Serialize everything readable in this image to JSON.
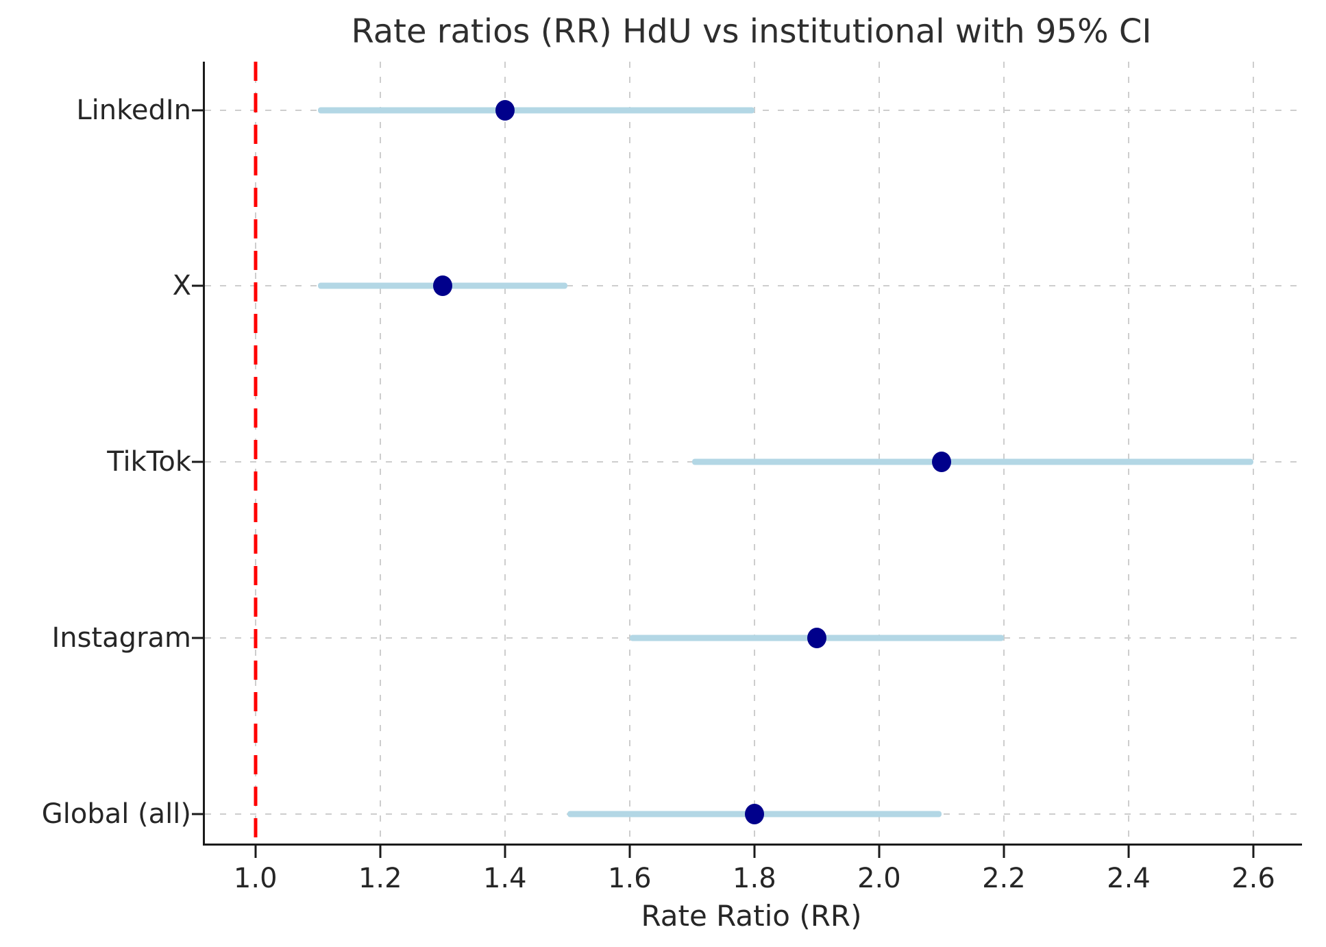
{
  "chart_data": {
    "type": "scatter",
    "subtype": "forest-plot-dots-with-95ci",
    "title": "Rate ratios (RR) HdU vs institutional with 95% CI",
    "xlabel": "Rate Ratio (RR)",
    "ylabel": "",
    "categories": [
      "LinkedIn",
      "X",
      "TikTok",
      "Instagram",
      "Global (all)"
    ],
    "points": [
      {
        "category": "LinkedIn",
        "rr": 1.4,
        "ci_low": 1.1,
        "ci_high": 1.8
      },
      {
        "category": "X",
        "rr": 1.3,
        "ci_low": 1.1,
        "ci_high": 1.5
      },
      {
        "category": "TikTok",
        "rr": 2.1,
        "ci_low": 1.7,
        "ci_high": 2.6
      },
      {
        "category": "Instagram",
        "rr": 1.9,
        "ci_low": 1.6,
        "ci_high": 2.2
      },
      {
        "category": "Global (all)",
        "rr": 1.8,
        "ci_low": 1.5,
        "ci_high": 2.1
      }
    ],
    "reference_line_x": 1.0,
    "x_ticks": [
      1.0,
      1.2,
      1.4,
      1.6,
      1.8,
      2.0,
      2.2,
      2.4,
      2.6
    ],
    "x_tick_decimals": 1,
    "xlim": [
      0.919,
      2.678
    ],
    "row_layout": {
      "first_row_pct": 6.2,
      "row_step_pct": 22.5
    },
    "grid": true,
    "legend": false,
    "colors": {
      "ci_line": "#b3d7e5",
      "point": "#00008b",
      "reference_line": "#ff0000",
      "grid_line": "#cdcdcd",
      "axis": "#1a1a1a",
      "text": "#262626"
    }
  }
}
